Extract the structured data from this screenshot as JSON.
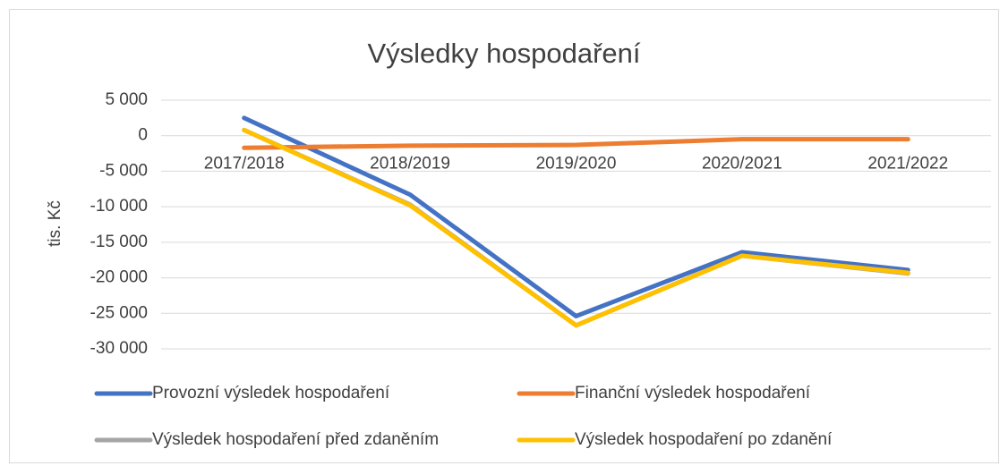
{
  "chart_data": {
    "type": "line",
    "title": "Výsledky hospodaření",
    "y_label": "tis. Kč",
    "categories": [
      "2017/2018",
      "2018/2019",
      "2019/2020",
      "2020/2021",
      "2021/2022"
    ],
    "series": [
      {
        "name": "Provozní výsledek hospodaření",
        "color": "#4472c4",
        "values": [
          2500,
          -8300,
          -25400,
          -16400,
          -18900
        ]
      },
      {
        "name": "Finanční výsledek hospodaření",
        "color": "#ed7d31",
        "values": [
          -1700,
          -1400,
          -1300,
          -500,
          -500
        ]
      },
      {
        "name": "Výsledek hospodaření před zdaněním",
        "color": "#a5a5a5",
        "values": [
          800,
          -9700,
          -26700,
          -16900,
          -19400
        ]
      },
      {
        "name": "Výsledek hospodaření po zdanění",
        "color": "#ffc000",
        "values": [
          800,
          -9800,
          -26700,
          -16900,
          -19300
        ]
      }
    ],
    "ylim": [
      -30000,
      5000
    ],
    "yticks": [
      {
        "value": -30000,
        "label": "-30 000"
      },
      {
        "value": -25000,
        "label": "-25 000"
      },
      {
        "value": -20000,
        "label": "-20 000"
      },
      {
        "value": -15000,
        "label": "-15 000"
      },
      {
        "value": -10000,
        "label": "-10 000"
      },
      {
        "value": -5000,
        "label": "-5 000"
      },
      0,
      {
        "value": 5000,
        "label": "5 000"
      }
    ],
    "grid": true,
    "legend": "bottom"
  }
}
